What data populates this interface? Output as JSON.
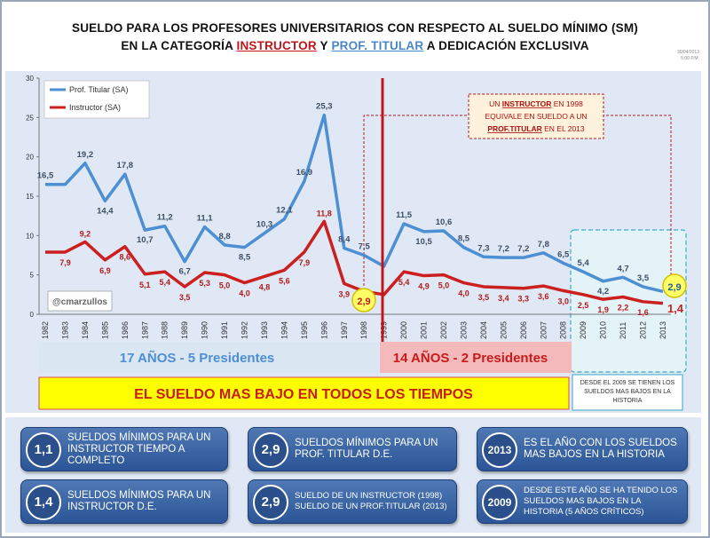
{
  "title": {
    "line1": "SUELDO PARA LOS PROFESORES UNIVERSITARIOS CON RESPECTO AL SUELDO MÍNIMO (SM)",
    "line2_pre": "EN LA CATEGORÍA",
    "line2_instructor": "INSTRUCTOR",
    "line2_mid": "Y",
    "line2_titular": "PROF. TITULAR",
    "line2_post": "A DEDICACIÓN EXCLUSIVA"
  },
  "stamp": {
    "date": "30/04/2013",
    "time": "5:00 P.M."
  },
  "colors": {
    "titular": "#4d8fd3",
    "instructor": "#cc1f1f",
    "divider": "#c3161c",
    "yellow": "#ffff00",
    "pink": "#f4b9bb"
  },
  "chart_data": {
    "type": "line",
    "categories": [
      "1982",
      "1983",
      "1984",
      "1985",
      "1986",
      "1987",
      "1988",
      "1989",
      "1990",
      "1991",
      "1992",
      "1993",
      "1994",
      "1995",
      "1996",
      "1997",
      "1998",
      "1999",
      "2000",
      "2001",
      "2002",
      "2003",
      "2004",
      "2005",
      "2006",
      "2007",
      "2008",
      "2009",
      "2010",
      "2011",
      "2012",
      "2013"
    ],
    "series": [
      {
        "name": "Prof. Titular (SA)",
        "values": [
          16.5,
          16.5,
          19.2,
          14.4,
          17.8,
          10.7,
          11.2,
          6.7,
          11.1,
          8.8,
          8.5,
          10.3,
          12.1,
          16.9,
          25.3,
          8.4,
          7.5,
          6.1,
          11.5,
          10.5,
          10.6,
          8.5,
          7.3,
          7.2,
          7.2,
          7.8,
          6.5,
          5.4,
          4.2,
          4.7,
          3.5,
          2.9
        ],
        "labels": [
          "16,5",
          "",
          "19,2",
          "14,4",
          "17,8",
          "10,7",
          "11,2",
          "6,7",
          "11,1",
          "8,8",
          "8,5",
          "10,3",
          "12,1",
          "16,9",
          "25,3",
          "8,4",
          "7,5",
          "",
          "11,5",
          "10,5",
          "10,6",
          "8,5",
          "7,3",
          "7,2",
          "7,2",
          "7,8",
          "6,5",
          "5,4",
          "4,2",
          "4,7",
          "3,5",
          "2,9"
        ]
      },
      {
        "name": "Instructor (SA)",
        "values": [
          7.9,
          7.9,
          9.2,
          6.9,
          8.6,
          5.1,
          5.4,
          3.5,
          5.3,
          5.0,
          4.0,
          4.8,
          5.6,
          7.9,
          11.8,
          3.9,
          2.9,
          2.5,
          5.4,
          4.9,
          5.0,
          4.0,
          3.5,
          3.4,
          3.3,
          3.6,
          3.0,
          2.5,
          1.9,
          2.2,
          1.6,
          1.4
        ],
        "labels": [
          "",
          "7,9",
          "9,2",
          "6,9",
          "8,6",
          "5,1",
          "5,4",
          "3,5",
          "5,3",
          "5,0",
          "4,0",
          "4,8",
          "5,6",
          "7,9",
          "11,8",
          "3,9",
          "2,9",
          "",
          "5,4",
          "4,9",
          "5,0",
          "4,0",
          "3,5",
          "3,4",
          "3,3",
          "3,6",
          "3,0",
          "2,5",
          "1,9",
          "2,2",
          "1,6",
          "1,4"
        ]
      }
    ],
    "ylim": [
      0,
      30
    ],
    "yticks": [
      0,
      5,
      10,
      15,
      20,
      25,
      30
    ],
    "legend": "top-left",
    "annotations": {
      "callout": [
        "UN",
        "INSTRUCTOR",
        "EN 1998",
        "EQUIVALE EN SUELDO A UN",
        "PROF.TITULAR",
        "EN EL 2013"
      ],
      "circle_1998": "2,9",
      "circle_2013": "2,9",
      "end_label_2013": "1,4",
      "handle": "@cmarzullos",
      "era1": "17 AÑOS - 5 Presidentes",
      "era2": "14 AÑOS - 2 Presidentes",
      "banner": "EL SUELDO MAS BAJO EN TODOS LOS TIEMPOS",
      "note_2009": "DESDE EL 2009 SE TIENEN LOS SUELDOS MAS BAJOS EN LA HISTORIA"
    }
  },
  "cards": [
    {
      "num": "1,1",
      "text": "SUELDOS MÍNIMOS PARA UN INSTRUCTOR TIEMPO A COMPLETO"
    },
    {
      "num": "2,9",
      "text": "SUELDOS MÍNIMOS PARA UN PROF. TITULAR D.E."
    },
    {
      "num": "2013",
      "text": "ES EL AÑO CON LOS SUELDOS MAS BAJOS EN LA HISTORIA"
    },
    {
      "num": "1,4",
      "text": "SUELDOS MÍNIMOS PARA UN INSTRUCTOR D.E."
    },
    {
      "num": "2,9",
      "text": "SUELDO DE UN INSTRUCTOR (1998) SUELDO DE UN PROF.TITULAR (2013)"
    },
    {
      "num": "2009",
      "text": "DESDE ESTE AÑO SE HA TENIDO LOS SUELDOS MAS BAJOS EN LA HISTORIA (5 AÑOS CRÍTICOS)"
    }
  ]
}
